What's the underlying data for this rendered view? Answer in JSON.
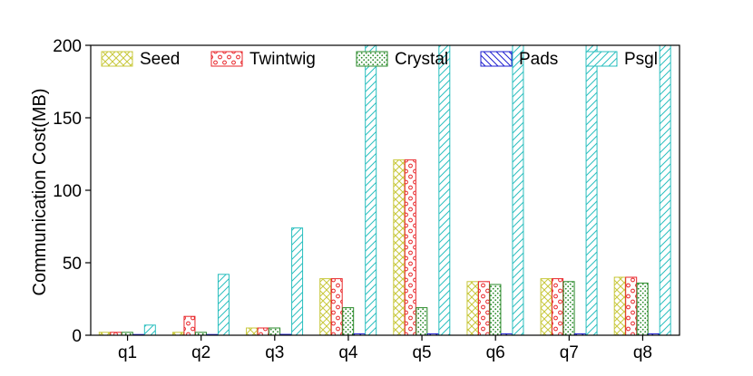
{
  "chart_data": {
    "type": "bar",
    "categories": [
      "q1",
      "q2",
      "q3",
      "q4",
      "q5",
      "q6",
      "q7",
      "q8"
    ],
    "ylabel": "Communication Cost(MB)",
    "xlabel": "",
    "ylim": [
      0,
      200
    ],
    "yticks": [
      0,
      50,
      100,
      150,
      200
    ],
    "grid": false,
    "legend_position": "top",
    "series": [
      {
        "name": "Seed",
        "color": "#c8c83c",
        "pattern": "crosshatch",
        "values": [
          2,
          2,
          5,
          39,
          121,
          37,
          39,
          40
        ]
      },
      {
        "name": "Twintwig",
        "color": "#e8262a",
        "pattern": "circles",
        "values": [
          2,
          13,
          5,
          39,
          121,
          37,
          39,
          40
        ]
      },
      {
        "name": "Crystal",
        "color": "#2a8a2a",
        "pattern": "dots",
        "values": [
          2,
          2,
          5,
          19,
          19,
          35,
          37,
          36
        ]
      },
      {
        "name": "Pads",
        "color": "#1f1fd0",
        "pattern": "backslash",
        "values": [
          0.3,
          0.3,
          0.6,
          1,
          1,
          1,
          1,
          1
        ]
      },
      {
        "name": "Psgl",
        "color": "#2abfbf",
        "pattern": "slash",
        "values": [
          7,
          42,
          74,
          200,
          200,
          200,
          200,
          200
        ]
      }
    ]
  }
}
